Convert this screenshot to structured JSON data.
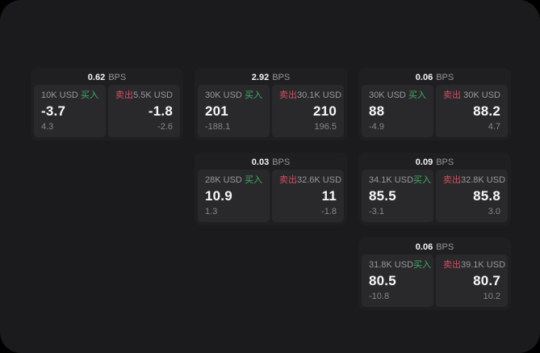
{
  "labels": {
    "buy": "买入",
    "sell": "卖出",
    "bps_suffix": "BPS"
  },
  "colors": {
    "buy_green": "#3fae68",
    "sell_red": "#d15062",
    "canvas_bg": "#1b1b1d",
    "card_bg": "#1f1f21",
    "panel_bg": "#29292b"
  },
  "cards": [
    {
      "bps": "0.62",
      "buy": {
        "amount": "10K USD",
        "value": "-3.7",
        "delta": "4.3"
      },
      "sell": {
        "amount": "5.5K USD",
        "value": "-1.8",
        "delta": "-2.6"
      }
    },
    {
      "bps": "2.92",
      "buy": {
        "amount": "30K USD",
        "value": "201",
        "delta": "-188.1"
      },
      "sell": {
        "amount": "30.1K USD",
        "value": "210",
        "delta": "196.5"
      }
    },
    {
      "bps": "0.06",
      "buy": {
        "amount": "30K USD",
        "value": "88",
        "delta": "-4.9"
      },
      "sell": {
        "amount": "30K USD",
        "value": "88.2",
        "delta": "4.7"
      }
    },
    {
      "bps": "0.03",
      "buy": {
        "amount": "28K USD",
        "value": "10.9",
        "delta": "1.3"
      },
      "sell": {
        "amount": "32.6K USD",
        "value": "11",
        "delta": "-1.8"
      }
    },
    {
      "bps": "0.09",
      "buy": {
        "amount": "34.1K USD",
        "value": "85.5",
        "delta": "-3.1"
      },
      "sell": {
        "amount": "32.8K USD",
        "value": "85.8",
        "delta": "3.0"
      }
    },
    {
      "bps": "0.06",
      "buy": {
        "amount": "31.8K USD",
        "value": "80.5",
        "delta": "-10.8"
      },
      "sell": {
        "amount": "39.1K USD",
        "value": "80.7",
        "delta": "10.2"
      }
    }
  ]
}
